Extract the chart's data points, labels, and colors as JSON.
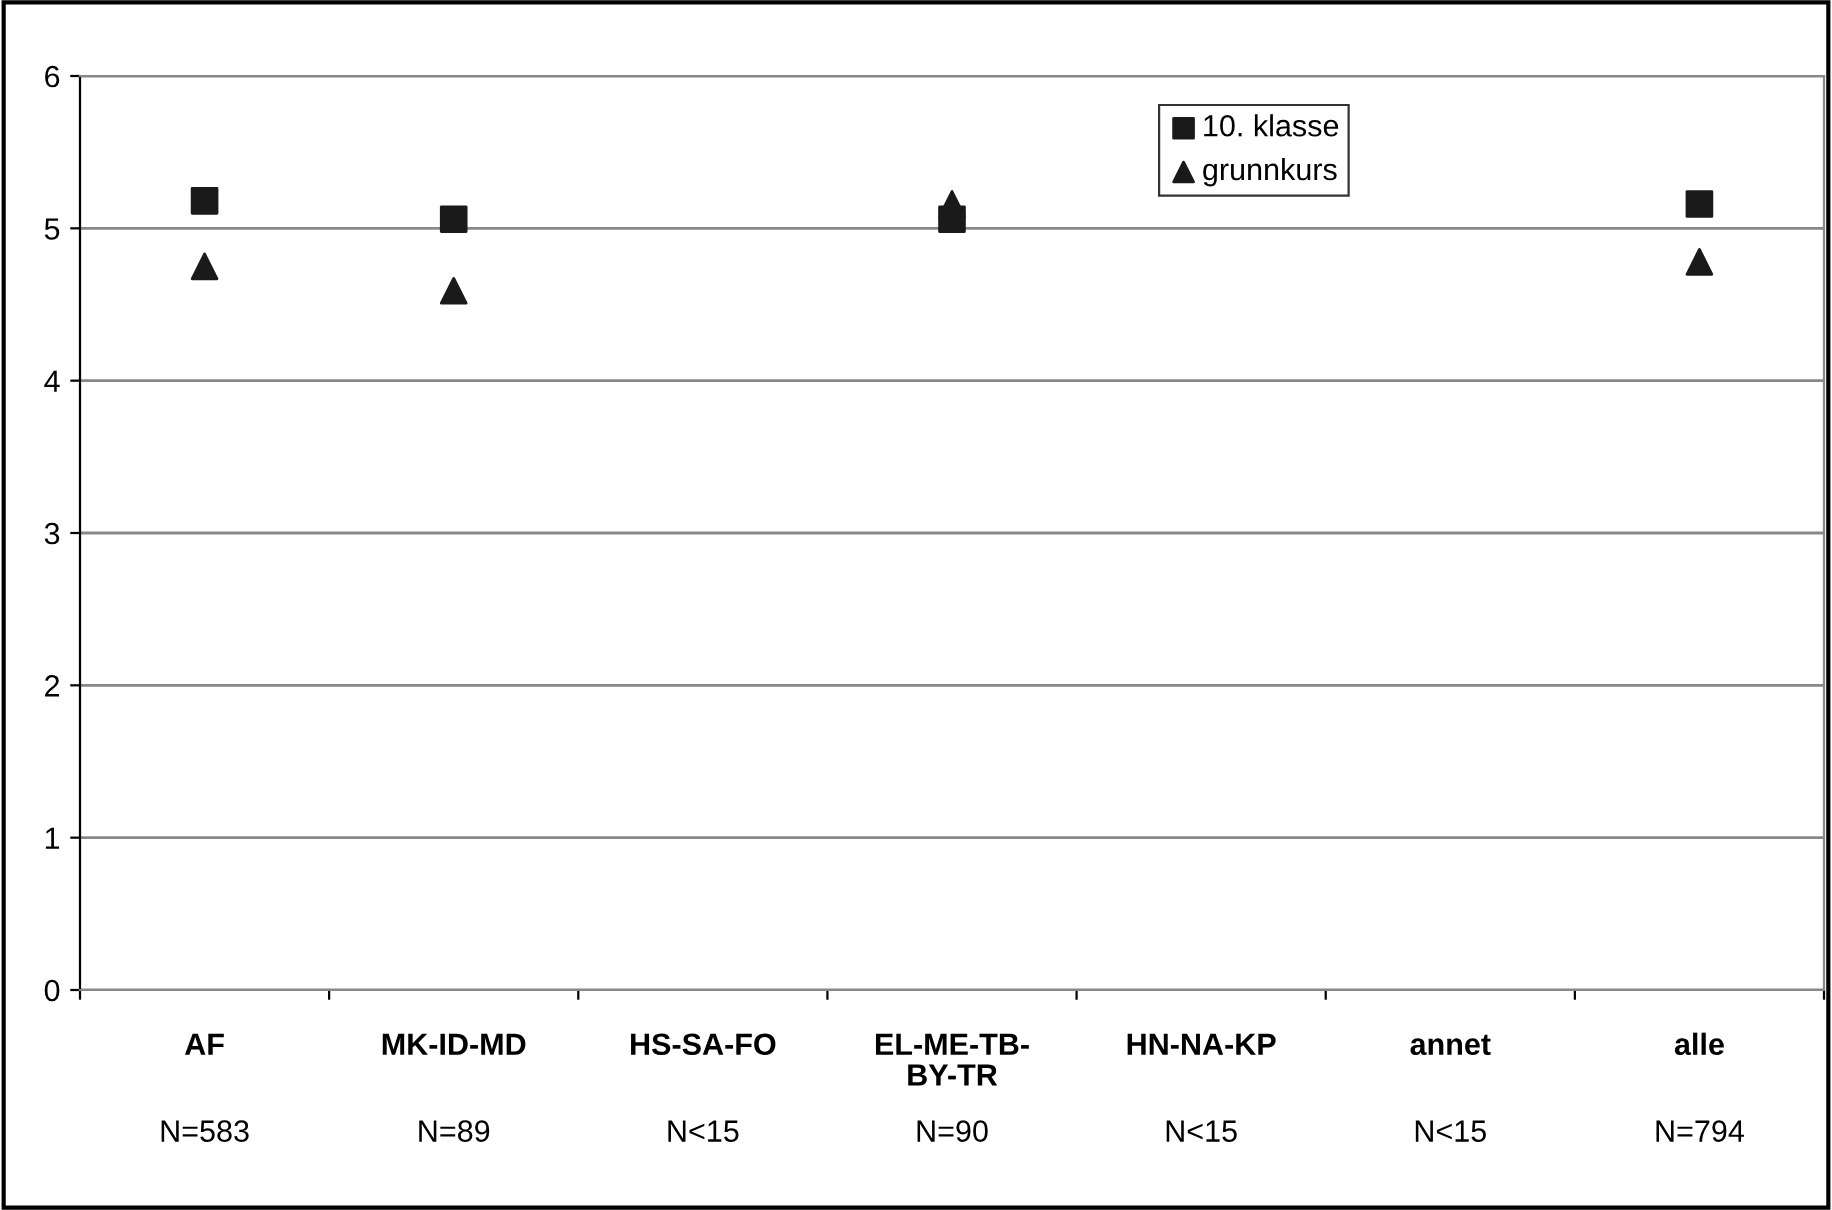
{
  "chart_data": {
    "type": "scatter",
    "categories": [
      "AF",
      "MK-ID-MD",
      "HS-SA-FO",
      "EL-ME-TB-\nBY-TR",
      "HN-NA-KP",
      "annet",
      "alle"
    ],
    "series": [
      {
        "name": "10. klasse",
        "color": "#1a1a1a",
        "marker": "square",
        "values": [
          5.18,
          5.06,
          null,
          5.06,
          null,
          null,
          5.16
        ]
      },
      {
        "name": "grunnkurs",
        "color": "#1a1a1a",
        "marker": "triangle",
        "values": [
          4.75,
          4.59,
          null,
          5.16,
          null,
          null,
          4.78
        ]
      }
    ],
    "annotations": [
      "N=583",
      "N=89",
      "N<15",
      "N=90",
      "N<15",
      "N<15",
      "N=794"
    ],
    "ylim": [
      0,
      6
    ],
    "yticks": [
      0,
      1,
      2,
      3,
      4,
      5,
      6
    ],
    "grid": "y",
    "legend": "top"
  }
}
